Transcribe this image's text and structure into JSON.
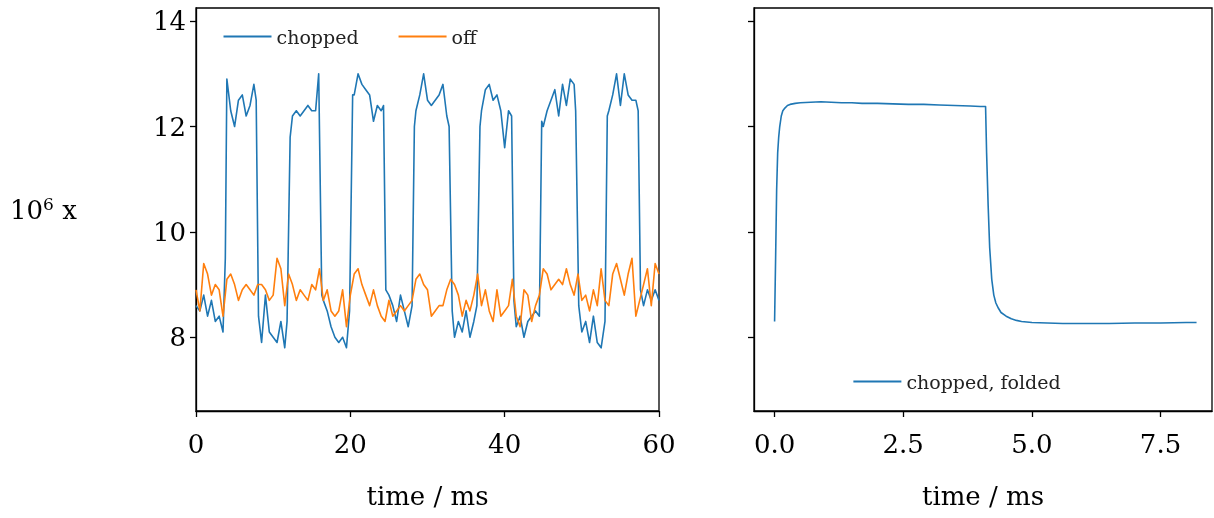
{
  "chart_data": [
    {
      "type": "line",
      "xlabel": "time / ms",
      "ylabel": "10$^{6}$ x",
      "xlim": [
        0,
        60
      ],
      "xticks": [
        0,
        20,
        40,
        60
      ],
      "ylim": [
        6.6,
        14.25
      ],
      "yticks": [
        8,
        10,
        12,
        14
      ],
      "legend": "top",
      "grid": false,
      "series": [
        {
          "name": "chopped",
          "color": "#1f77b4",
          "x": [
            0,
            0.5,
            1,
            1.5,
            2,
            2.5,
            3,
            3.5,
            3.8,
            4,
            4.5,
            5,
            5.5,
            6,
            6.5,
            7,
            7.5,
            7.8,
            8.1,
            8.5,
            9,
            9.5,
            10,
            10.5,
            11,
            11.5,
            11.8,
            12.2,
            12.5,
            13,
            13.5,
            14,
            14.5,
            15,
            15.5,
            15.9,
            16.3,
            16.5,
            17,
            17.5,
            18,
            18.5,
            19,
            19.5,
            19.9,
            20.3,
            20.5,
            21,
            21.5,
            22,
            22.5,
            23,
            23.5,
            24,
            24.3,
            24.6,
            25,
            25.5,
            26,
            26.5,
            27,
            27.5,
            28,
            28.3,
            28.5,
            29,
            29.5,
            30,
            30.5,
            31,
            31.5,
            32,
            32.5,
            32.8,
            33.2,
            33.5,
            34,
            34.5,
            35,
            35.5,
            36,
            36.4,
            36.8,
            37,
            37.5,
            38,
            38.5,
            39,
            39.5,
            40,
            40.5,
            40.9,
            41.2,
            41.5,
            42,
            42.5,
            43,
            43.5,
            44,
            44.5,
            44.8,
            45,
            45.5,
            46,
            46.5,
            47,
            47.5,
            48,
            48.5,
            49,
            49.2,
            49.6,
            50,
            50.5,
            51,
            51.5,
            52,
            52.5,
            53,
            53.3,
            53.5,
            54,
            54.5,
            55,
            55.5,
            56,
            56.5,
            57,
            57.3,
            57.6,
            58,
            58.5,
            59,
            59.5,
            60
          ],
          "values": [
            8.6,
            8.5,
            8.8,
            8.4,
            8.7,
            8.3,
            8.4,
            8.1,
            9.5,
            12.9,
            12.3,
            12.0,
            12.5,
            12.6,
            12.2,
            12.4,
            12.8,
            12.5,
            8.4,
            7.9,
            8.8,
            8.1,
            8.0,
            7.9,
            8.3,
            7.8,
            8.3,
            11.8,
            12.2,
            12.3,
            12.2,
            12.3,
            12.4,
            12.3,
            12.3,
            13.0,
            8.8,
            8.7,
            8.5,
            8.2,
            8.0,
            7.9,
            8.0,
            7.8,
            8.5,
            12.6,
            12.6,
            13.0,
            12.8,
            12.7,
            12.6,
            12.1,
            12.4,
            12.3,
            12.4,
            8.9,
            8.8,
            8.6,
            8.3,
            8.8,
            8.5,
            8.2,
            8.6,
            12.0,
            12.3,
            12.6,
            13.0,
            12.5,
            12.4,
            12.5,
            12.6,
            12.8,
            12.2,
            12.0,
            8.5,
            8.0,
            8.3,
            8.1,
            8.5,
            8.0,
            8.3,
            8.6,
            12.0,
            12.3,
            12.7,
            12.8,
            12.5,
            12.6,
            12.3,
            11.6,
            12.3,
            12.2,
            8.7,
            8.2,
            8.4,
            8.0,
            8.3,
            8.4,
            8.5,
            8.4,
            12.1,
            12.0,
            12.3,
            12.5,
            12.7,
            12.2,
            12.8,
            12.4,
            12.9,
            12.8,
            12.3,
            8.6,
            8.1,
            8.3,
            7.9,
            8.4,
            7.9,
            7.8,
            8.3,
            12.2,
            12.3,
            12.6,
            13.0,
            12.4,
            13.0,
            12.6,
            12.5,
            12.5,
            12.3,
            8.9,
            8.6,
            8.9,
            8.7,
            8.9,
            8.7
          ]
        },
        {
          "name": "off",
          "color": "#ff7f0e",
          "x": [
            0,
            0.5,
            1,
            1.5,
            2,
            2.5,
            3,
            3.5,
            4,
            4.5,
            5,
            5.5,
            6,
            6.5,
            7,
            7.5,
            8,
            8.5,
            9,
            9.5,
            10,
            10.5,
            11,
            11.5,
            12,
            12.5,
            13,
            13.5,
            14,
            14.5,
            15,
            15.5,
            16,
            16.5,
            17,
            17.5,
            18,
            18.5,
            19,
            19.5,
            20,
            20.5,
            21,
            21.5,
            22,
            22.5,
            23,
            23.5,
            24,
            24.5,
            25,
            25.5,
            26,
            26.5,
            27,
            27.5,
            28,
            28.5,
            29,
            29.5,
            30,
            30.5,
            31,
            31.5,
            32,
            32.5,
            33,
            33.5,
            34,
            34.5,
            35,
            35.5,
            36,
            36.5,
            37,
            37.5,
            38,
            38.5,
            39,
            39.5,
            40,
            40.5,
            41,
            41.5,
            42,
            42.5,
            43,
            43.5,
            44,
            44.5,
            45,
            45.5,
            46,
            46.5,
            47,
            47.5,
            48,
            48.5,
            49,
            49.5,
            50,
            50.5,
            51,
            51.5,
            52,
            52.5,
            53,
            53.5,
            54,
            54.5,
            55,
            55.5,
            56,
            56.5,
            57,
            57.5,
            58,
            58.5,
            59,
            59.5,
            60
          ],
          "values": [
            8.9,
            8.5,
            9.4,
            9.2,
            8.8,
            9.0,
            8.9,
            8.4,
            9.1,
            9.2,
            9.0,
            8.7,
            8.9,
            9.0,
            8.9,
            8.8,
            9.0,
            9.0,
            8.9,
            8.7,
            8.8,
            9.5,
            9.3,
            8.6,
            9.2,
            9.0,
            8.7,
            8.9,
            8.8,
            8.7,
            9.0,
            8.9,
            9.3,
            8.7,
            8.9,
            8.5,
            8.4,
            8.5,
            8.9,
            8.2,
            8.8,
            9.2,
            9.3,
            9.0,
            8.8,
            8.6,
            8.9,
            8.6,
            8.4,
            8.3,
            8.7,
            8.4,
            8.5,
            8.6,
            8.5,
            8.6,
            8.7,
            9.1,
            9.2,
            9.0,
            8.9,
            8.4,
            8.5,
            8.6,
            8.6,
            8.9,
            9.1,
            9.0,
            8.8,
            8.4,
            8.7,
            8.5,
            8.8,
            9.2,
            8.6,
            8.9,
            8.5,
            8.3,
            8.9,
            8.4,
            8.5,
            8.6,
            9.1,
            8.4,
            8.2,
            8.9,
            8.8,
            8.3,
            8.6,
            8.8,
            9.3,
            9.2,
            8.9,
            9.0,
            9.1,
            9.0,
            9.3,
            9.0,
            8.8,
            9.2,
            8.7,
            8.8,
            8.5,
            8.9,
            8.6,
            9.3,
            8.7,
            8.6,
            9.2,
            9.4,
            9.1,
            8.8,
            9.2,
            9.5,
            8.4,
            8.7,
            9.0,
            9.3,
            8.6,
            9.4,
            9.2
          ]
        }
      ]
    },
    {
      "type": "line",
      "xlabel": "time / ms",
      "xlim": [
        -0.4,
        8.5
      ],
      "xticks": [
        {
          "value": 0,
          "label": "0.0"
        },
        {
          "value": 2.5,
          "label": "2.5"
        },
        {
          "value": 5,
          "label": "5.0"
        },
        {
          "value": 7.5,
          "label": "7.5"
        }
      ],
      "ylim": [
        6.6,
        14.25
      ],
      "yticks": [
        8,
        10,
        12,
        14
      ],
      "tick_labels": "x",
      "legend": "bottom",
      "grid": false,
      "series": [
        {
          "name": "chopped, folded",
          "color": "#1f77b4",
          "x": [
            0,
            0.02,
            0.04,
            0.06,
            0.08,
            0.1,
            0.13,
            0.16,
            0.2,
            0.25,
            0.3,
            0.4,
            0.5,
            0.7,
            0.9,
            1.1,
            1.3,
            1.5,
            1.7,
            2.0,
            2.3,
            2.6,
            2.9,
            3.2,
            3.5,
            3.8,
            4.0,
            4.1,
            4.12,
            4.15,
            4.18,
            4.22,
            4.26,
            4.3,
            4.35,
            4.4,
            4.5,
            4.6,
            4.7,
            4.8,
            5.0,
            5.3,
            5.6,
            6.0,
            6.5,
            7.0,
            7.5,
            8.0,
            8.2
          ],
          "values": [
            8.3,
            9.5,
            10.8,
            11.5,
            11.8,
            12.0,
            12.2,
            12.3,
            12.35,
            12.4,
            12.42,
            12.44,
            12.45,
            12.46,
            12.47,
            12.46,
            12.45,
            12.45,
            12.44,
            12.44,
            12.43,
            12.42,
            12.42,
            12.41,
            12.4,
            12.39,
            12.38,
            12.38,
            11.5,
            10.5,
            9.7,
            9.1,
            8.8,
            8.65,
            8.55,
            8.47,
            8.4,
            8.35,
            8.32,
            8.3,
            8.28,
            8.27,
            8.26,
            8.26,
            8.26,
            8.27,
            8.27,
            8.28,
            8.28
          ]
        }
      ]
    }
  ]
}
